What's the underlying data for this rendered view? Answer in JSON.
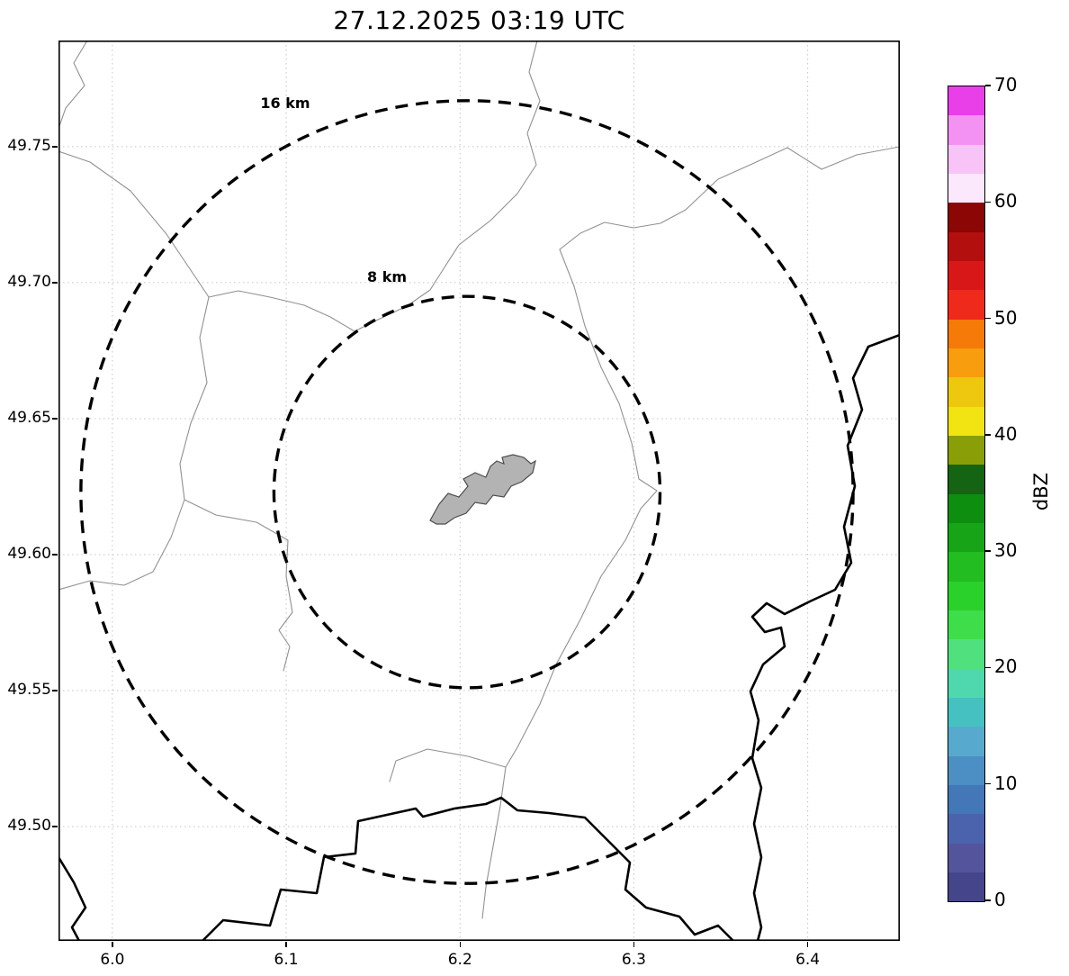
{
  "chart_data": {
    "type": "heatmap",
    "title": "27.12.2025 03:19 UTC",
    "xlabel": "",
    "ylabel": "",
    "x_range": [
      5.969,
      6.453
    ],
    "y_range": [
      49.458,
      49.789
    ],
    "x_ticks": [
      6.0,
      6.1,
      6.2,
      6.3,
      6.4
    ],
    "x_tick_labels": [
      "6.0",
      "6.1",
      "6.2",
      "6.3",
      "6.4"
    ],
    "y_ticks": [
      49.5,
      49.55,
      49.6,
      49.65,
      49.7,
      49.75
    ],
    "y_tick_labels": [
      "49.50",
      "49.55",
      "49.60",
      "49.65",
      "49.70",
      "49.75"
    ],
    "grid": true,
    "echoes": [],
    "radar": {
      "center": [
        6.204,
        49.623
      ],
      "rings": [
        {
          "id": "ring-16",
          "label": "16 km",
          "radius_km": 16
        },
        {
          "id": "ring-8",
          "label": "8 km",
          "radius_km": 8
        }
      ]
    },
    "map": {
      "city_fill": "#b3b3b3",
      "city_stroke": "#4d4d4d",
      "boundary_color": "#919191",
      "country_border_color": "#000000"
    },
    "colorbar": {
      "label": "dBZ",
      "min": 0,
      "max": 70,
      "ticks": [
        0,
        10,
        20,
        30,
        40,
        50,
        60,
        70
      ],
      "tick_labels": [
        "0",
        "10",
        "20",
        "30",
        "40",
        "50",
        "60",
        "70"
      ],
      "colors": [
        "#45458b",
        "#54549c",
        "#4b63ad",
        "#4377b8",
        "#4b8fc4",
        "#57aacd",
        "#46c1c1",
        "#4fd8ae",
        "#51e07e",
        "#3ede4b",
        "#2bd12b",
        "#21bd21",
        "#17a517",
        "#0e8e0e",
        "#146414",
        "#8a9e08",
        "#f2e313",
        "#edc80f",
        "#f79d0e",
        "#f57a08",
        "#ef2a1c",
        "#d81818",
        "#b30f0f",
        "#8c0606",
        "#fce8fc",
        "#f8c4f8",
        "#f392f3",
        "#e93fe9"
      ]
    }
  }
}
